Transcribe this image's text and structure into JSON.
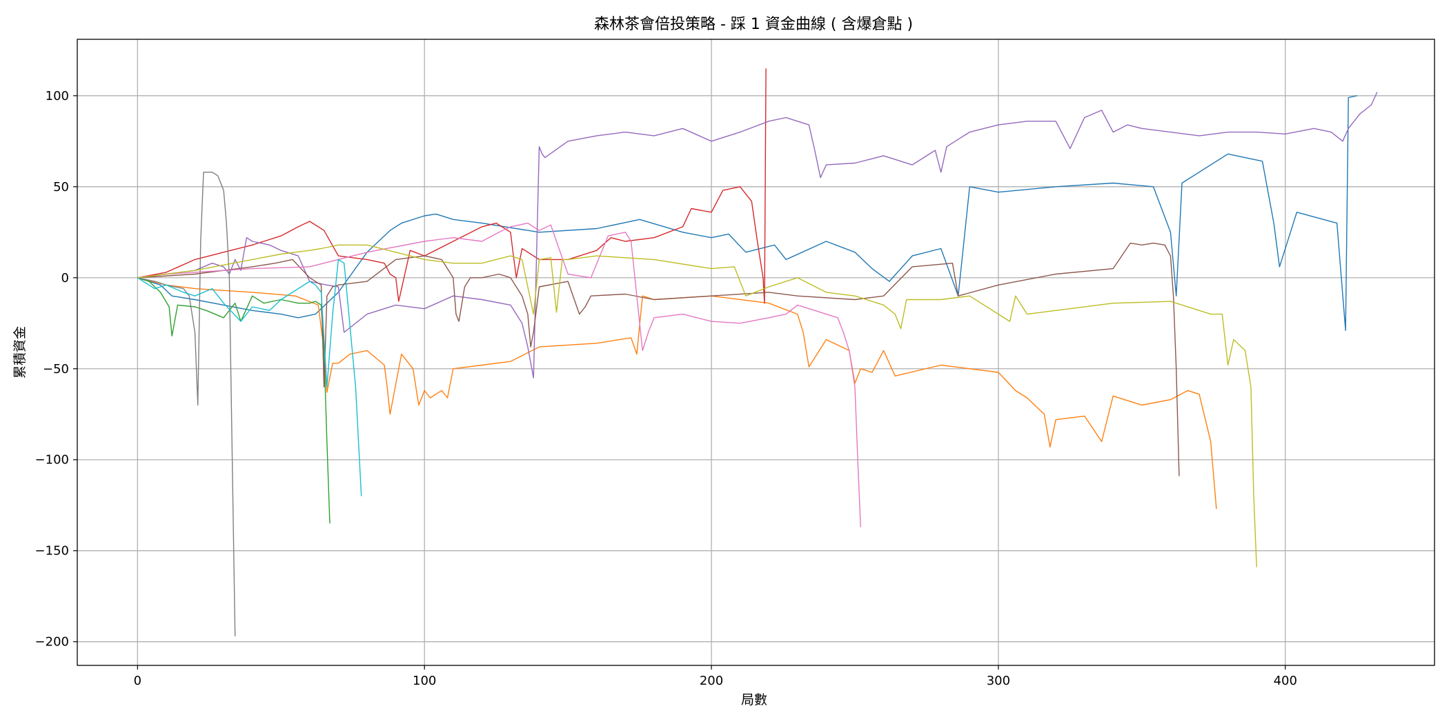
{
  "chart_data": {
    "type": "line",
    "title": "森林茶會倍投策略 - 踩 1 資金曲線 ( 含爆倉點 )",
    "xlabel": "局數",
    "ylabel": "累積資金",
    "xlim": [
      -21,
      452
    ],
    "ylim": [
      -213,
      131
    ],
    "xticks": [
      0,
      100,
      200,
      300,
      400
    ],
    "yticks": [
      -200,
      -150,
      -100,
      -50,
      0,
      50,
      100
    ],
    "xtick_labels": [
      "0",
      "100",
      "200",
      "300",
      "400"
    ],
    "ytick_labels": [
      "−200",
      "−150",
      "−100",
      "−50",
      "0",
      "50",
      "100"
    ],
    "grid": true,
    "legend": "none",
    "colors": [
      "#1f77b4",
      "#ff7f0e",
      "#2ca02c",
      "#d62728",
      "#9467bd",
      "#8c564b",
      "#e377c2",
      "#7f7f7f",
      "#bcbd22",
      "#17becf"
    ],
    "series": [
      {
        "x": [
          0,
          8,
          12,
          20,
          30,
          40,
          50,
          56,
          62,
          70,
          80,
          88,
          92,
          100,
          104,
          110,
          120,
          140,
          160,
          175,
          190,
          200,
          206,
          212,
          222,
          226,
          240,
          250,
          256,
          262,
          270,
          280,
          286,
          290,
          300,
          320,
          340,
          354,
          360,
          362,
          364,
          380,
          392,
          396,
          398,
          404,
          418,
          421,
          422,
          425
        ],
        "y": [
          0,
          -4,
          -10,
          -12,
          -15,
          -18,
          -20,
          -22,
          -20,
          -8,
          14,
          26,
          30,
          34,
          35,
          32,
          30,
          25,
          27,
          32,
          25,
          22,
          24,
          14,
          18,
          10,
          20,
          14,
          5,
          -2,
          12,
          16,
          -10,
          50,
          47,
          50,
          52,
          50,
          25,
          -10,
          52,
          68,
          64,
          30,
          6,
          36,
          30,
          -29,
          99,
          100
        ]
      },
      {
        "x": [
          0,
          10,
          20,
          40,
          55,
          63,
          65,
          66,
          68,
          70,
          74,
          80,
          86,
          87,
          88,
          92,
          96,
          97,
          98,
          100,
          102,
          106,
          108,
          110,
          120,
          130,
          140,
          160,
          172,
          174,
          176,
          180,
          200,
          220,
          230,
          232,
          234,
          240,
          248,
          250,
          252,
          256,
          260,
          264,
          280,
          300,
          306,
          310,
          316,
          318,
          320,
          330,
          336,
          340,
          350,
          360,
          366,
          370,
          374,
          376
        ],
        "y": [
          0,
          -4,
          -6,
          -8,
          -10,
          -15,
          -40,
          -63,
          -47,
          -47,
          -42,
          -40,
          -48,
          -60,
          -75,
          -42,
          -50,
          -60,
          -70,
          -62,
          -66,
          -62,
          -66,
          -50,
          -48,
          -46,
          -38,
          -36,
          -33,
          -42,
          -10,
          -12,
          -10,
          -14,
          -20,
          -30,
          -49,
          -34,
          -40,
          -58,
          -50,
          -52,
          -40,
          -54,
          -48,
          -52,
          -62,
          -66,
          -75,
          -93,
          -78,
          -76,
          -90,
          -65,
          -70,
          -67,
          -62,
          -64,
          -90,
          -127
        ]
      },
      {
        "x": [
          0,
          4,
          8,
          11,
          12,
          14,
          20,
          24,
          30,
          34,
          36,
          40,
          44,
          50,
          56,
          60,
          62,
          64,
          65,
          66,
          67
        ],
        "y": [
          0,
          -2,
          -8,
          -16,
          -32,
          -15,
          -16,
          -18,
          -22,
          -14,
          -24,
          -10,
          -14,
          -12,
          -14,
          -14,
          -13,
          -15,
          -40,
          -90,
          -135
        ]
      },
      {
        "x": [
          0,
          10,
          20,
          30,
          40,
          50,
          56,
          60,
          65,
          70,
          80,
          86,
          88,
          90,
          91,
          95,
          100,
          110,
          120,
          125,
          130,
          131,
          132,
          134,
          140,
          150,
          160,
          165,
          170,
          180,
          190,
          193,
          200,
          204,
          210,
          214,
          216,
          218,
          218.5,
          219
        ],
        "y": [
          0,
          3,
          10,
          14,
          18,
          23,
          28,
          31,
          26,
          12,
          10,
          8,
          2,
          0,
          -13,
          15,
          12,
          20,
          28,
          30,
          25,
          12,
          0,
          16,
          10,
          10,
          15,
          22,
          20,
          22,
          28,
          38,
          36,
          48,
          50,
          42,
          20,
          0,
          -14,
          115
        ]
      },
      {
        "x": [
          0,
          10,
          20,
          26,
          30,
          32,
          34,
          36,
          38,
          40,
          46,
          50,
          56,
          60,
          66,
          70,
          72,
          80,
          90,
          100,
          110,
          120,
          130,
          134,
          136,
          138,
          140,
          141,
          142,
          150,
          160,
          170,
          180,
          190,
          200,
          210,
          220,
          226,
          230,
          234,
          236,
          238,
          240,
          250,
          260,
          270,
          278,
          280,
          282,
          290,
          300,
          310,
          320,
          325,
          330,
          336,
          340,
          345,
          350,
          360,
          370,
          380,
          390,
          400,
          410,
          416,
          420,
          422,
          426,
          430,
          432
        ],
        "y": [
          0,
          2,
          4,
          8,
          6,
          2,
          10,
          4,
          22,
          20,
          18,
          15,
          12,
          -2,
          -4,
          -5,
          -30,
          -20,
          -15,
          -17,
          -10,
          -12,
          -15,
          -25,
          -38,
          -55,
          72,
          68,
          66,
          75,
          78,
          80,
          78,
          82,
          75,
          80,
          86,
          88,
          86,
          84,
          70,
          55,
          62,
          63,
          67,
          62,
          70,
          58,
          72,
          80,
          84,
          86,
          86,
          71,
          88,
          92,
          80,
          84,
          82,
          80,
          78,
          80,
          80,
          79,
          82,
          80,
          75,
          82,
          90,
          95,
          102
        ]
      },
      {
        "x": [
          0,
          20,
          30,
          40,
          48,
          54,
          60,
          64,
          65,
          66,
          68,
          70,
          80,
          90,
          100,
          106,
          110,
          111,
          112,
          114,
          116,
          120,
          126,
          130,
          134,
          136,
          137,
          138,
          140,
          150,
          154,
          156,
          158,
          170,
          180,
          200,
          220,
          230,
          250,
          260,
          270,
          284,
          286,
          300,
          320,
          340,
          346,
          350,
          354,
          358,
          360,
          361,
          362,
          363
        ],
        "y": [
          0,
          2,
          4,
          6,
          8,
          10,
          0,
          -4,
          -60,
          -10,
          -5,
          -4,
          -2,
          10,
          12,
          10,
          0,
          -20,
          -24,
          -5,
          0,
          0,
          2,
          0,
          -10,
          -20,
          -38,
          -30,
          -5,
          -2,
          -20,
          -16,
          -10,
          -9,
          -12,
          -10,
          -8,
          -10,
          -12,
          -10,
          6,
          8,
          -10,
          -4,
          2,
          5,
          19,
          18,
          19,
          18,
          12,
          -10,
          -50,
          -109
        ]
      },
      {
        "x": [
          0,
          10,
          20,
          40,
          60,
          80,
          100,
          110,
          120,
          126,
          130,
          136,
          140,
          144,
          146,
          150,
          158,
          164,
          170,
          172,
          174,
          176,
          178,
          180,
          190,
          200,
          210,
          220,
          226,
          230,
          236,
          240,
          244,
          246,
          248,
          250,
          251,
          252
        ],
        "y": [
          0,
          2,
          3,
          5,
          6,
          14,
          20,
          22,
          20,
          25,
          28,
          30,
          26,
          29,
          20,
          2,
          0,
          23,
          25,
          20,
          -10,
          -40,
          -30,
          -22,
          -20,
          -24,
          -25,
          -22,
          -20,
          -15,
          -18,
          -20,
          -22,
          -30,
          -40,
          -60,
          -100,
          -137
        ]
      },
      {
        "x": [
          0,
          6,
          10,
          16,
          18,
          20,
          21,
          22,
          23,
          24,
          26,
          28,
          30,
          31,
          32,
          33,
          34
        ],
        "y": [
          0,
          -2,
          -4,
          -6,
          -10,
          -30,
          -70,
          20,
          58,
          58,
          58,
          56,
          48,
          30,
          0,
          -100,
          -197
        ]
      },
      {
        "x": [
          0,
          20,
          40,
          50,
          60,
          64,
          70,
          80,
          90,
          100,
          110,
          120,
          130,
          134,
          136,
          138,
          140,
          144,
          146,
          148,
          150,
          160,
          180,
          200,
          208,
          212,
          220,
          230,
          240,
          250,
          260,
          264,
          266,
          268,
          280,
          290,
          300,
          304,
          306,
          310,
          320,
          340,
          360,
          374,
          378,
          380,
          382,
          386,
          388,
          389,
          390
        ],
        "y": [
          0,
          4,
          10,
          13,
          15,
          16,
          18,
          18,
          14,
          10,
          8,
          8,
          12,
          10,
          -5,
          -20,
          10,
          11,
          -19,
          10,
          10,
          12,
          10,
          5,
          6,
          -10,
          -5,
          0,
          -8,
          -10,
          -15,
          -20,
          -28,
          -12,
          -12,
          -10,
          -20,
          -24,
          -10,
          -20,
          -18,
          -14,
          -13,
          -20,
          -20,
          -48,
          -34,
          -40,
          -60,
          -120,
          -159
        ]
      },
      {
        "x": [
          0,
          6,
          10,
          16,
          20,
          26,
          30,
          36,
          40,
          46,
          50,
          56,
          60,
          62,
          64,
          66,
          68,
          70,
          72,
          76,
          78
        ],
        "y": [
          0,
          -6,
          -4,
          -8,
          -10,
          -6,
          -14,
          -24,
          -16,
          -18,
          -12,
          -6,
          -2,
          -4,
          -8,
          -60,
          -20,
          10,
          8,
          -60,
          -120
        ]
      }
    ]
  }
}
